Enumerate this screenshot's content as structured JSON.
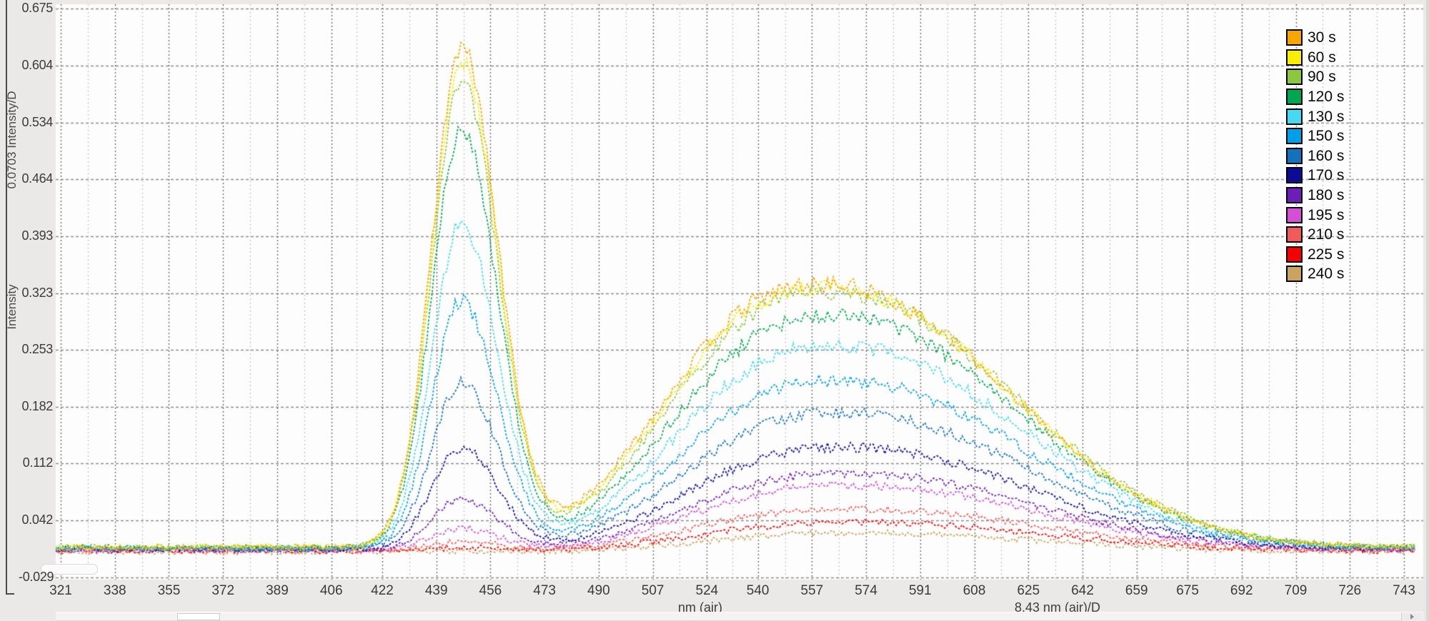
{
  "chart_data": {
    "type": "line",
    "title": "",
    "xlabel": "nm (air)",
    "xlabel_scale": "8.43 nm (air)/D",
    "ylabel": "Intensity",
    "ylabel_scale": "0.0703 Intensity/D",
    "x_unit": "nm",
    "x_range": [
      321,
      743
    ],
    "y_range": [
      -0.029,
      0.675
    ],
    "x_ticks": [
      321,
      338,
      355,
      372,
      389,
      406,
      422,
      439,
      456,
      473,
      490,
      507,
      524,
      540,
      557,
      574,
      591,
      608,
      625,
      642,
      659,
      675,
      692,
      709,
      726,
      743
    ],
    "y_ticks": [
      "0.675",
      "0.604",
      "0.534",
      "0.464",
      "0.393",
      "0.323",
      "0.253",
      "0.182",
      "0.112",
      "0.042",
      "-0.029"
    ],
    "grid": "dashed-major-dotted-minor",
    "legend_position": "top-right",
    "first_peak_nm": 447,
    "valley_nm": 488,
    "second_peak_nm": 564,
    "series": [
      {
        "label": "30 s",
        "color": "#F7A600",
        "peak1": 0.615,
        "valley": 0.058,
        "peak2": 0.325,
        "baseline": 0.0085
      },
      {
        "label": "60 s",
        "color": "#FCEE00",
        "peak1": 0.598,
        "valley": 0.057,
        "peak2": 0.321,
        "baseline": 0.0085
      },
      {
        "label": "90 s",
        "color": "#8DC63F",
        "peak1": 0.577,
        "valley": 0.055,
        "peak2": 0.316,
        "baseline": 0.0085
      },
      {
        "label": "120 s",
        "color": "#00A651",
        "peak1": 0.515,
        "valley": 0.049,
        "peak2": 0.286,
        "baseline": 0.008
      },
      {
        "label": "130 s",
        "color": "#45D9F2",
        "peak1": 0.4,
        "valley": 0.042,
        "peak2": 0.25,
        "baseline": 0.0075
      },
      {
        "label": "150 s",
        "color": "#009FE8",
        "peak1": 0.305,
        "valley": 0.035,
        "peak2": 0.208,
        "baseline": 0.007
      },
      {
        "label": "160 s",
        "color": "#1272BA",
        "peak1": 0.205,
        "valley": 0.028,
        "peak2": 0.168,
        "baseline": 0.0065
      },
      {
        "label": "170 s",
        "color": "#0B0B96",
        "peak1": 0.125,
        "valley": 0.021,
        "peak2": 0.126,
        "baseline": 0.006
      },
      {
        "label": "180 s",
        "color": "#6B1FB8",
        "peak1": 0.062,
        "valley": 0.016,
        "peak2": 0.094,
        "baseline": 0.0055
      },
      {
        "label": "195 s",
        "color": "#D24FD6",
        "peak1": 0.027,
        "valley": 0.013,
        "peak2": 0.08,
        "baseline": 0.005
      },
      {
        "label": "210 s",
        "color": "#F25B5B",
        "peak1": 0.011,
        "valley": 0.009,
        "peak2": 0.051,
        "baseline": 0.0045
      },
      {
        "label": "225 s",
        "color": "#F50000",
        "peak1": 0.004,
        "valley": 0.007,
        "peak2": 0.035,
        "baseline": 0.004
      },
      {
        "label": "240 s",
        "color": "#C9A35F",
        "peak1": 0.001,
        "valley": 0.005,
        "peak2": 0.023,
        "baseline": 0.0028
      }
    ]
  },
  "scrollbar": {
    "right_arrow": "right-arrow"
  }
}
